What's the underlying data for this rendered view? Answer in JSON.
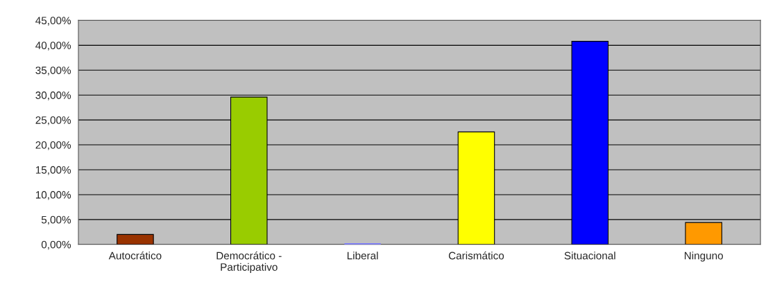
{
  "chart_data": {
    "type": "bar",
    "categories": [
      "Autocrático",
      "Democrático -\nParticipativo",
      "Liberal",
      "Carismático",
      "Situacional",
      "Ninguno"
    ],
    "values": [
      2.0,
      29.6,
      0,
      22.6,
      40.8,
      4.4
    ],
    "colors": [
      "#993300",
      "#99cc00",
      "#8080ff",
      "#ffff00",
      "#0000ff",
      "#ff9900"
    ],
    "ylim": [
      0,
      45
    ],
    "yticks": [
      {
        "value": 0,
        "label": "0,00%"
      },
      {
        "value": 5,
        "label": "5,00%"
      },
      {
        "value": 10,
        "label": "10,00%"
      },
      {
        "value": 15,
        "label": "15,00%"
      },
      {
        "value": 20,
        "label": "20,00%"
      },
      {
        "value": 25,
        "label": "25,00%"
      },
      {
        "value": 30,
        "label": "30,00%"
      },
      {
        "value": 35,
        "label": "35,00%"
      },
      {
        "value": 40,
        "label": "40,00%"
      },
      {
        "value": 45,
        "label": "45,00%"
      }
    ],
    "grid": "y"
  }
}
